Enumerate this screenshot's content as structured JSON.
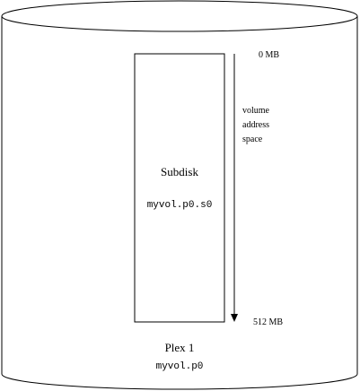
{
  "plex": {
    "title": "Plex 1",
    "name": "myvol.p0"
  },
  "subdisk": {
    "title": "Subdisk",
    "name": "myvol.p0.s0"
  },
  "address_space": {
    "start_label": "0 MB",
    "end_label": "512 MB",
    "label_lines": [
      "volume",
      "address",
      "space"
    ]
  }
}
